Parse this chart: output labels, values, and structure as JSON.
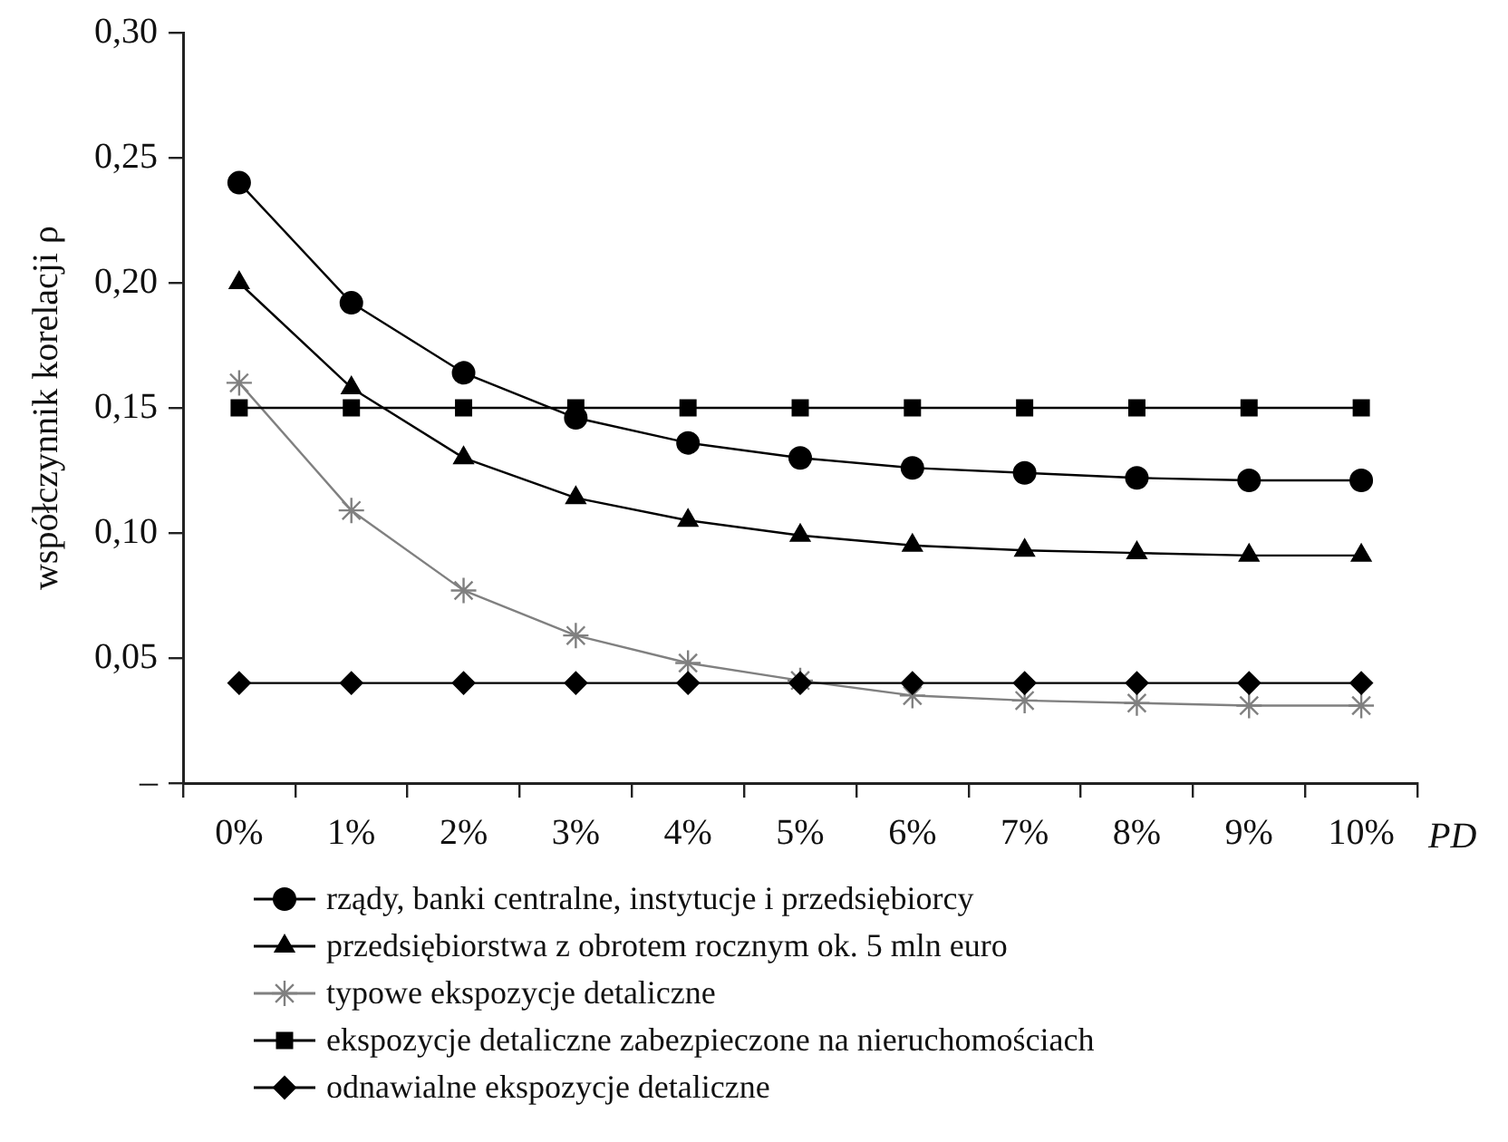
{
  "chart_data": {
    "type": "line",
    "xlabel": "PD",
    "ylabel": "współczynnik korelacji ρ",
    "categories": [
      "0%",
      "1%",
      "2%",
      "3%",
      "4%",
      "5%",
      "6%",
      "7%",
      "8%",
      "9%",
      "10%"
    ],
    "ylim": [
      0,
      0.3
    ],
    "yticks": [
      {
        "value": 0,
        "label": "–"
      },
      {
        "value": 0.05,
        "label": "0,05"
      },
      {
        "value": 0.1,
        "label": "0,10"
      },
      {
        "value": 0.15,
        "label": "0,15"
      },
      {
        "value": 0.2,
        "label": "0,20"
      },
      {
        "value": 0.25,
        "label": "0,25"
      },
      {
        "value": 0.3,
        "label": "0,30"
      }
    ],
    "grid": false,
    "legend": "bottom",
    "line_style": "solid",
    "series": [
      {
        "name": "rządy, banki centralne, instytucje i przedsiębiorcy",
        "color": "#000000",
        "marker": "circle",
        "values": [
          0.24,
          0.192,
          0.164,
          0.146,
          0.136,
          0.13,
          0.126,
          0.124,
          0.122,
          0.121,
          0.121
        ]
      },
      {
        "name": "przedsiębiorstwa z obrotem rocznym ok. 5 mln euro",
        "color": "#000000",
        "marker": "triangle",
        "values": [
          0.2,
          0.158,
          0.13,
          0.114,
          0.105,
          0.099,
          0.095,
          0.093,
          0.092,
          0.091,
          0.091
        ]
      },
      {
        "name": "typowe ekspozycje detaliczne",
        "color": "#808080",
        "marker": "cross",
        "values": [
          0.16,
          0.109,
          0.077,
          0.059,
          0.048,
          0.041,
          0.035,
          0.033,
          0.032,
          0.031,
          0.031
        ]
      },
      {
        "name": "ekspozycje detaliczne zabezpieczone na nieruchomościach",
        "color": "#000000",
        "marker": "square",
        "values": [
          0.15,
          0.15,
          0.15,
          0.15,
          0.15,
          0.15,
          0.15,
          0.15,
          0.15,
          0.15,
          0.15
        ]
      },
      {
        "name": "odnawialne ekspozycje detaliczne",
        "color": "#000000",
        "marker": "diamond",
        "values": [
          0.04,
          0.04,
          0.04,
          0.04,
          0.04,
          0.04,
          0.04,
          0.04,
          0.04,
          0.04,
          0.04
        ]
      }
    ]
  }
}
